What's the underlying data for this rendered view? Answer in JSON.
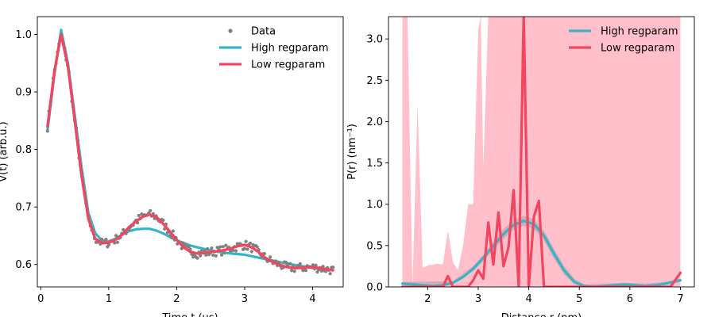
{
  "chart_data": [
    {
      "type": "scatter",
      "xlabel": "Time t (μs)",
      "ylabel": "V(t) (arb.u.)",
      "xlim": [
        -0.05,
        4.45
      ],
      "ylim": [
        0.561,
        1.031
      ],
      "xticks": [
        0,
        1,
        2,
        3,
        4
      ],
      "yticks": [
        0.6,
        0.7,
        0.8,
        0.9,
        1.0
      ],
      "xtick_labels": [
        "0",
        "1",
        "2",
        "3",
        "4"
      ],
      "ytick_labels": [
        "0.6",
        "0.7",
        "0.8",
        "0.9",
        "1.0"
      ],
      "legend_position": "top-right",
      "series": [
        {
          "name": "Data",
          "kind": "points",
          "color": "#808080"
        },
        {
          "name": "High regparam",
          "kind": "line",
          "color": "#3BB3C6",
          "x": [
            0.1,
            0.2,
            0.3,
            0.4,
            0.5,
            0.6,
            0.7,
            0.8,
            0.9,
            1.0,
            1.1,
            1.2,
            1.3,
            1.4,
            1.5,
            1.6,
            1.7,
            1.8,
            1.9,
            2.0,
            2.2,
            2.4,
            2.6,
            2.8,
            3.0,
            3.2,
            3.4,
            3.6,
            3.8,
            4.0,
            4.3
          ],
          "y": [
            0.833,
            0.93,
            1.008,
            0.95,
            0.86,
            0.77,
            0.69,
            0.655,
            0.641,
            0.64,
            0.645,
            0.652,
            0.658,
            0.661,
            0.662,
            0.662,
            0.659,
            0.654,
            0.648,
            0.642,
            0.633,
            0.627,
            0.622,
            0.619,
            0.617,
            0.612,
            0.607,
            0.602,
            0.598,
            0.594,
            0.59
          ]
        },
        {
          "name": "Low regparam",
          "kind": "line",
          "color": "#F04660",
          "x": [
            0.1,
            0.2,
            0.3,
            0.4,
            0.5,
            0.6,
            0.7,
            0.8,
            0.9,
            1.0,
            1.1,
            1.2,
            1.3,
            1.4,
            1.5,
            1.6,
            1.7,
            1.8,
            1.9,
            2.0,
            2.1,
            2.2,
            2.3,
            2.4,
            2.5,
            2.6,
            2.7,
            2.8,
            2.9,
            3.0,
            3.1,
            3.2,
            3.3,
            3.4,
            3.5,
            3.6,
            3.7,
            3.8,
            3.9,
            4.0,
            4.1,
            4.2,
            4.3
          ],
          "y": [
            0.84,
            0.935,
            1.0,
            0.945,
            0.85,
            0.755,
            0.68,
            0.645,
            0.637,
            0.638,
            0.643,
            0.652,
            0.665,
            0.675,
            0.683,
            0.687,
            0.683,
            0.671,
            0.657,
            0.643,
            0.63,
            0.622,
            0.619,
            0.62,
            0.622,
            0.623,
            0.625,
            0.628,
            0.632,
            0.634,
            0.63,
            0.622,
            0.612,
            0.605,
            0.6,
            0.596,
            0.594,
            0.594,
            0.595,
            0.595,
            0.594,
            0.592,
            0.59
          ]
        }
      ]
    },
    {
      "type": "line",
      "xlabel": "Distance r (nm)",
      "ylabel": "P(r) (nm⁻¹)",
      "xlim": [
        1.225,
        7.275
      ],
      "ylim": [
        0,
        3.27
      ],
      "xticks": [
        2,
        3,
        4,
        5,
        6,
        7
      ],
      "yticks": [
        0,
        0.5,
        1.0,
        1.5,
        2.0,
        2.5,
        3.0
      ],
      "xtick_labels": [
        "2",
        "3",
        "4",
        "5",
        "6",
        "7"
      ],
      "ytick_labels": [
        "0.0",
        "0.5",
        "1.0",
        "1.5",
        "2.0",
        "2.5",
        "3.0"
      ],
      "legend_position": "top-right",
      "series": [
        {
          "name": "High regparam",
          "color": "#3BB3C6",
          "x": [
            1.5,
            1.7,
            1.9,
            2.1,
            2.3,
            2.5,
            2.7,
            2.9,
            3.1,
            3.3,
            3.5,
            3.7,
            3.9,
            4.1,
            4.3,
            4.5,
            4.7,
            4.9,
            5.1,
            5.3,
            5.5,
            5.7,
            5.9,
            6.1,
            6.3,
            6.5,
            6.7,
            7.0
          ],
          "y": [
            0.04,
            0.03,
            0.02,
            0.01,
            0.02,
            0.05,
            0.12,
            0.22,
            0.35,
            0.5,
            0.64,
            0.75,
            0.8,
            0.76,
            0.62,
            0.4,
            0.2,
            0.06,
            0.01,
            0.0,
            0.01,
            0.02,
            0.03,
            0.02,
            0.01,
            0.02,
            0.04,
            0.08
          ]
        },
        {
          "name": "Low regparam",
          "color": "#F04660",
          "x": [
            1.5,
            1.8,
            2.0,
            2.2,
            2.3,
            2.4,
            2.5,
            2.6,
            2.8,
            2.9,
            3.0,
            3.1,
            3.2,
            3.3,
            3.4,
            3.5,
            3.6,
            3.7,
            3.8,
            3.9,
            4.0,
            4.1,
            4.2,
            4.3,
            4.5,
            5.0,
            5.5,
            6.0,
            6.5,
            6.8,
            7.0
          ],
          "y": [
            0.0,
            0.0,
            0.0,
            0.0,
            0.0,
            0.13,
            0.0,
            0.0,
            0.0,
            0.08,
            0.2,
            0.1,
            0.78,
            0.27,
            0.9,
            0.25,
            0.48,
            1.17,
            0.0,
            3.3,
            0.0,
            0.85,
            1.04,
            0.0,
            0.0,
            0.0,
            0.0,
            0.0,
            0.0,
            0.0,
            0.17
          ]
        }
      ],
      "bands": [
        {
          "color": "#FFC0CB",
          "x": [
            1.5,
            1.6,
            1.7,
            1.8,
            1.9,
            2.0,
            2.2,
            2.3,
            2.4,
            2.5,
            2.6,
            2.7,
            2.8,
            2.9,
            3.0,
            3.05,
            3.1,
            3.2,
            3.3,
            4.0,
            4.5,
            5.0,
            6.0,
            7.0
          ],
          "upper": [
            3.3,
            3.3,
            0.0,
            2.22,
            0.23,
            0.26,
            0.28,
            0.27,
            0.68,
            0.3,
            0.2,
            0.5,
            1.0,
            1.0,
            3.1,
            3.3,
            1.45,
            3.3,
            3.3,
            3.3,
            3.3,
            3.3,
            3.3,
            3.3
          ],
          "lower": [
            0,
            0,
            0,
            0,
            0,
            0,
            0,
            0,
            0,
            0,
            0,
            0,
            0,
            0,
            0,
            0,
            0,
            0,
            0,
            0,
            0,
            0,
            0,
            0
          ]
        },
        {
          "color": "#C9A6AF",
          "x": [
            1.5,
            2.5,
            2.9,
            3.1,
            3.3,
            3.5,
            3.7,
            3.9,
            4.1,
            4.3,
            4.5,
            4.7,
            4.9,
            5.1,
            5.5,
            5.9,
            6.3,
            6.7,
            7.0
          ],
          "upper": [
            0.06,
            0.07,
            0.25,
            0.39,
            0.55,
            0.7,
            0.81,
            0.86,
            0.82,
            0.68,
            0.46,
            0.25,
            0.1,
            0.03,
            0.04,
            0.05,
            0.04,
            0.06,
            0.1
          ],
          "lower": [
            0.02,
            0.03,
            0.19,
            0.31,
            0.45,
            0.58,
            0.69,
            0.74,
            0.7,
            0.56,
            0.34,
            0.15,
            0.03,
            0.0,
            0.0,
            0.01,
            0.0,
            0.02,
            0.06
          ]
        }
      ]
    }
  ],
  "legend_labels": [
    "Data",
    "High regparam",
    "Low regparam"
  ]
}
